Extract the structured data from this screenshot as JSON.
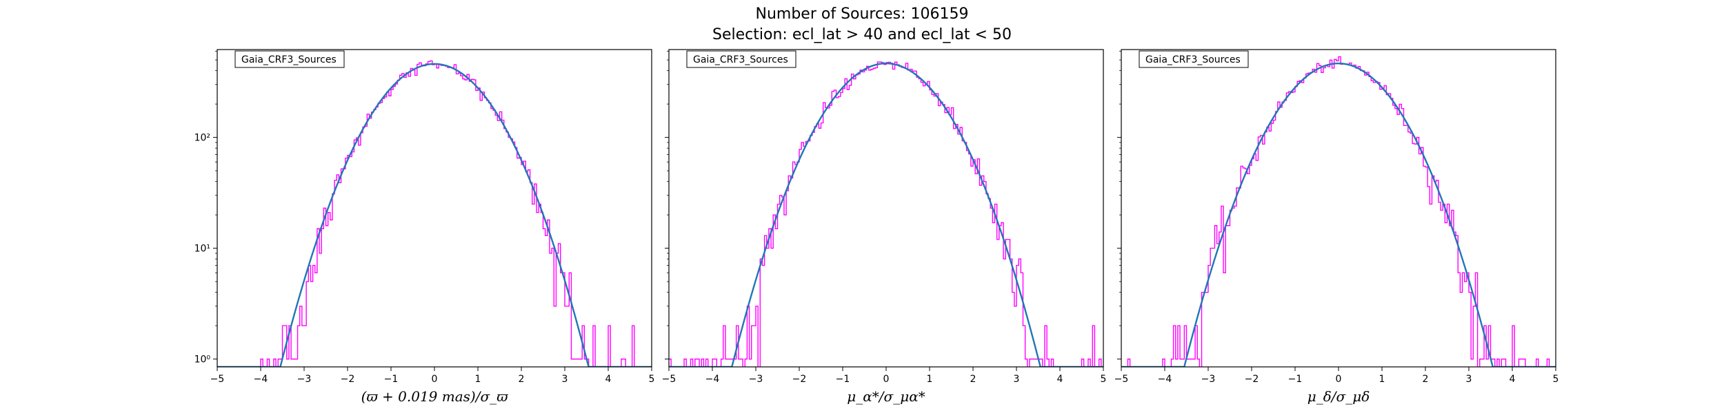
{
  "suptitle": {
    "line1": "Number of Sources: 106159",
    "line2": "Selection: ecl_lat > 40 and ecl_lat < 50"
  },
  "colors": {
    "histogram": "#ff00ff",
    "fit_curve": "#1f77b4",
    "axes": "#000000"
  },
  "chart_data": [
    {
      "type": "line",
      "xlabel": "(ϖ + 0.019 mas)/σ_ϖ",
      "ylabel": "",
      "xlim": [
        -5,
        5
      ],
      "ylim": [
        0.85,
        620
      ],
      "yscale": "log",
      "xticks": [
        "−5",
        "−4",
        "−3",
        "−2",
        "−1",
        "0",
        "1",
        "2",
        "3",
        "4",
        "5"
      ],
      "yticks": [
        {
          "value": 1,
          "label": "10⁰"
        },
        {
          "value": 10,
          "label": "10¹"
        },
        {
          "value": 100,
          "label": "10²"
        }
      ],
      "legend": {
        "entry": "Gaia_CRF3_Sources",
        "placement": "top-left"
      },
      "grid": false,
      "series": [
        {
          "name": "Gaia_CRF3_Sources",
          "kind": "histogram",
          "amplitude": 460,
          "sigma": 1.0,
          "center": 0.0,
          "bin_width": 0.05,
          "range": [
            -5,
            5
          ]
        },
        {
          "kind": "gaussian-fit",
          "amplitude": 460,
          "sigma": 1.0,
          "center": 0.0
        }
      ]
    },
    {
      "type": "line",
      "xlabel": "μ_α*/σ_μα*",
      "ylabel": "",
      "xlim": [
        -5,
        5
      ],
      "ylim": [
        0.85,
        620
      ],
      "yscale": "log",
      "xticks": [
        "−5",
        "−4",
        "−3",
        "−2",
        "−1",
        "0",
        "1",
        "2",
        "3",
        "4",
        "5"
      ],
      "yticks": [
        {
          "value": 1,
          "label": ""
        },
        {
          "value": 10,
          "label": ""
        },
        {
          "value": 100,
          "label": ""
        }
      ],
      "legend": {
        "entry": "Gaia_CRF3_Sources",
        "placement": "top-left"
      },
      "grid": false,
      "series": [
        {
          "name": "Gaia_CRF3_Sources",
          "kind": "histogram",
          "amplitude": 465,
          "sigma": 1.0,
          "center": 0.0,
          "bin_width": 0.05,
          "range": [
            -5,
            5
          ]
        },
        {
          "kind": "gaussian-fit",
          "amplitude": 465,
          "sigma": 1.0,
          "center": 0.0
        }
      ]
    },
    {
      "type": "line",
      "xlabel": "μ_δ/σ_μδ",
      "ylabel": "",
      "xlim": [
        -5,
        5
      ],
      "ylim": [
        0.85,
        620
      ],
      "yscale": "log",
      "xticks": [
        "−5",
        "−4",
        "−3",
        "−2",
        "−1",
        "0",
        "1",
        "2",
        "3",
        "4",
        "5"
      ],
      "yticks": [
        {
          "value": 1,
          "label": ""
        },
        {
          "value": 10,
          "label": ""
        },
        {
          "value": 100,
          "label": ""
        }
      ],
      "legend": {
        "entry": "Gaia_CRF3_Sources",
        "placement": "top-left"
      },
      "grid": false,
      "series": [
        {
          "name": "Gaia_CRF3_Sources",
          "kind": "histogram",
          "amplitude": 465,
          "sigma": 1.0,
          "center": 0.0,
          "bin_width": 0.05,
          "range": [
            -5,
            5
          ]
        },
        {
          "kind": "gaussian-fit",
          "amplitude": 465,
          "sigma": 1.0,
          "center": 0.0
        }
      ]
    }
  ]
}
